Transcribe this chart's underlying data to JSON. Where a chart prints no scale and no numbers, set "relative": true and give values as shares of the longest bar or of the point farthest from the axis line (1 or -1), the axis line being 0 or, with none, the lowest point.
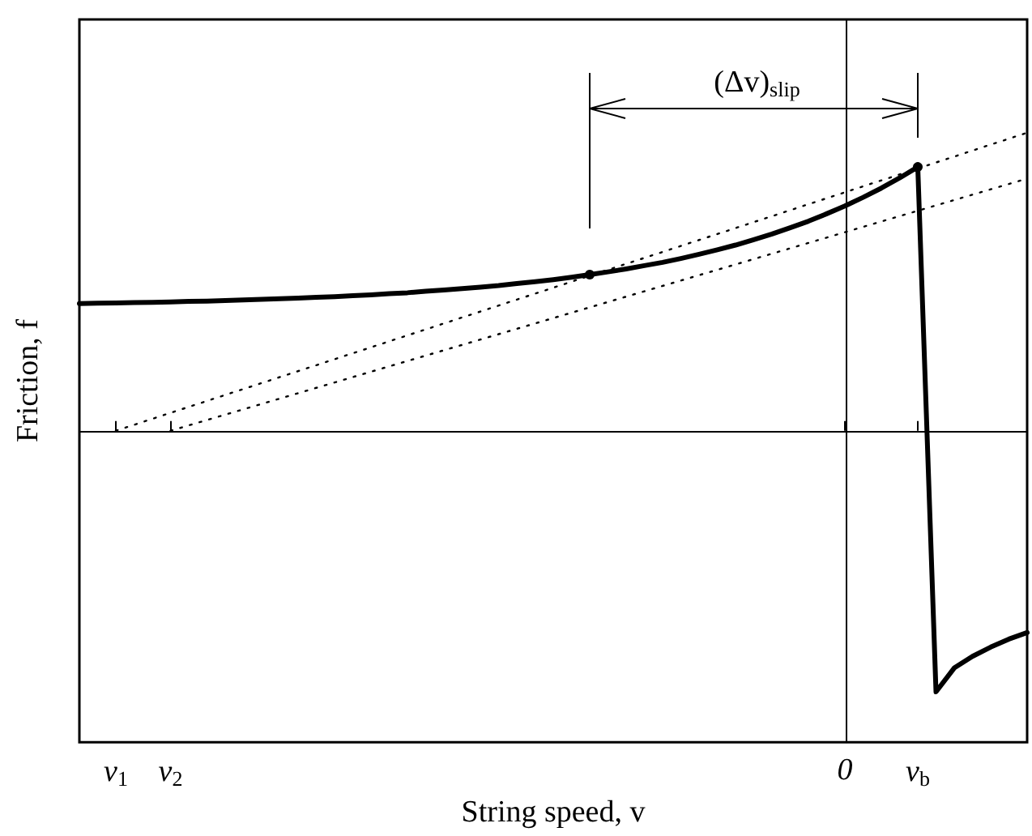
{
  "chart_data": {
    "type": "line",
    "relative": true,
    "xlabel": "String speed, v",
    "ylabel": "Friction, f",
    "categories": [
      null,
      null,
      "v$_{1}$",
      null,
      null,
      "v$_{2}$",
      null,
      null,
      null,
      null,
      null,
      null,
      null,
      null,
      null,
      null,
      null,
      null,
      null,
      null,
      null,
      null,
      null,
      null,
      null,
      null,
      null,
      null,
      null,
      null,
      null,
      null,
      null,
      null,
      null,
      null,
      null,
      null,
      null,
      null,
      null,
      null,
      "0",
      null,
      null,
      null,
      "v$_{b}$",
      null,
      null,
      null,
      null,
      null,
      null
    ],
    "annotations": [
      "(Δv)$_{slip}$"
    ],
    "grid": false,
    "marker": "none",
    "series": [
      {
        "color": "#000000",
        "line_style": "solid",
        "values": [
          0.427,
          0.428,
          0.429,
          0.43,
          0.431,
          0.432,
          0.434,
          0.435,
          0.437,
          0.439,
          0.441,
          0.443,
          0.445,
          0.448,
          0.45,
          0.453,
          0.456,
          0.46,
          0.463,
          0.468,
          0.472,
          0.477,
          0.482,
          0.487,
          0.494,
          0.5,
          0.507,
          0.515,
          0.524,
          0.533,
          0.543,
          0.554,
          0.565,
          0.578,
          0.592,
          0.607,
          0.623,
          0.641,
          0.66,
          0.681,
          0.703,
          0.728,
          0.754,
          0.783,
          0.814,
          0.848,
          0.885,
          -0.876,
          -0.796,
          -0.757,
          -0.726,
          -0.699,
          -0.677
        ]
      },
      {
        "color": "#000000",
        "line_style": "dotted",
        "values": [
          null,
          null,
          0,
          0.02,
          0.04,
          0.06,
          0.08,
          0.1,
          0.12,
          0.14,
          0.16,
          0.18,
          0.2,
          0.22,
          0.24,
          0.26,
          0.28,
          0.3,
          0.32,
          0.34,
          0.36,
          0.38,
          0.4,
          0.42,
          0.44,
          0.46,
          0.48,
          0.5,
          0.52,
          0.54,
          0.56,
          0.58,
          0.6,
          0.62,
          0.64,
          0.66,
          0.68,
          0.7,
          0.72,
          0.74,
          0.76,
          0.78,
          0.8,
          0.82,
          0.84,
          0.86,
          0.88,
          0.9,
          0.92,
          0.94,
          0.96,
          0.98,
          1.0
        ]
      },
      {
        "color": "#000000",
        "line_style": "dotted",
        "values": [
          null,
          null,
          null,
          null,
          null,
          0,
          0.018,
          0.036,
          0.054,
          0.072,
          0.09,
          0.108,
          0.126,
          0.144,
          0.162,
          0.18,
          0.198,
          0.216,
          0.234,
          0.252,
          0.27,
          0.288,
          0.306,
          0.324,
          0.342,
          0.36,
          0.378,
          0.396,
          0.414,
          0.432,
          0.45,
          0.468,
          0.486,
          0.504,
          0.522,
          0.54,
          0.558,
          0.576,
          0.594,
          0.612,
          0.63,
          0.648,
          0.666,
          0.684,
          0.702,
          0.72,
          0.738,
          0.756,
          0.774,
          0.792,
          0.81,
          0.828,
          0.846
        ]
      }
    ]
  }
}
